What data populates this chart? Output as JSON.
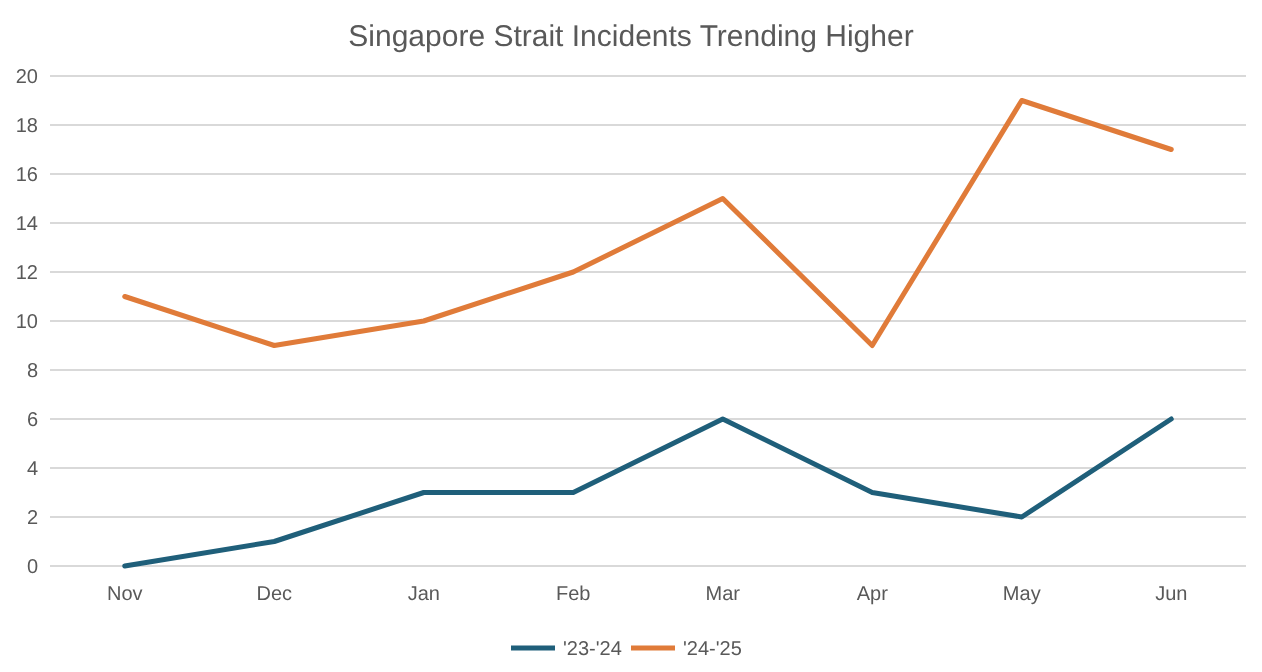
{
  "chart_data": {
    "type": "line",
    "title": "Singapore Strait Incidents Trending Higher",
    "categories": [
      "Nov",
      "Dec",
      "Jan",
      "Feb",
      "Mar",
      "Apr",
      "May",
      "Jun"
    ],
    "series": [
      {
        "name": "'23-'24",
        "color": "#1f5f7a",
        "values": [
          0,
          1,
          3,
          3,
          6,
          3,
          2,
          6
        ]
      },
      {
        "name": "'24-'25",
        "color": "#e07b39",
        "values": [
          11,
          9,
          10,
          12,
          15,
          9,
          19,
          17
        ]
      }
    ],
    "ylim": [
      0,
      20
    ],
    "yticks": [
      0,
      2,
      4,
      6,
      8,
      10,
      12,
      14,
      16,
      18,
      20
    ],
    "grid": "y",
    "legend": "bottom",
    "marker": "none",
    "line_style": "solid"
  }
}
